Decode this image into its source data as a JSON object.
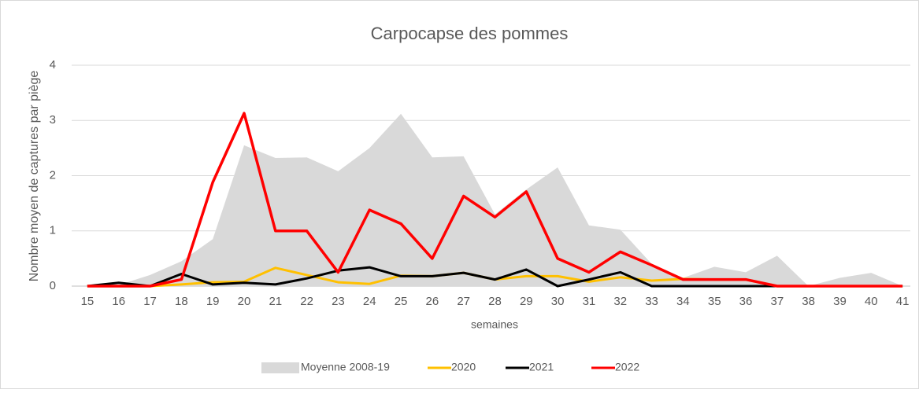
{
  "chart_data": {
    "type": "line",
    "title": "Carpocapse des pommes",
    "x_label": "semaines",
    "y_label": "Nombre  moyen de captures par piège",
    "categories": [
      "15",
      "16",
      "17",
      "18",
      "19",
      "20",
      "21",
      "22",
      "23",
      "24",
      "25",
      "26",
      "27",
      "28",
      "29",
      "30",
      "31",
      "32",
      "33",
      "34",
      "35",
      "36",
      "37",
      "38",
      "39",
      "40",
      "41"
    ],
    "series": [
      {
        "name": "Moyenne 2008-19",
        "type": "area",
        "color": "#d9d9d9",
        "values": [
          0,
          0.02,
          0.2,
          0.45,
          0.85,
          2.55,
          2.32,
          2.33,
          2.08,
          2.5,
          3.12,
          2.33,
          2.35,
          1.3,
          1.75,
          2.15,
          1.1,
          1.02,
          0.4,
          0.15,
          0.35,
          0.25,
          0.55,
          0,
          0.15,
          0.24,
          0
        ]
      },
      {
        "name": "2020",
        "type": "line",
        "color": "#ffc000",
        "values": [
          0,
          0,
          0,
          0.03,
          0.07,
          0.08,
          0.33,
          0.2,
          0.07,
          0.04,
          0.19,
          0.18,
          0.24,
          0.12,
          0.18,
          0.18,
          0.08,
          0.16,
          0.1,
          0.13,
          0.12,
          0.12,
          0,
          0,
          0,
          0,
          0
        ]
      },
      {
        "name": "2021",
        "type": "line",
        "color": "#000000",
        "values": [
          0,
          0.06,
          0,
          0.22,
          0.03,
          0.06,
          0.03,
          0.14,
          0.28,
          0.34,
          0.18,
          0.18,
          0.24,
          0.12,
          0.3,
          0,
          0.12,
          0.25,
          0,
          0,
          0,
          0,
          0,
          0,
          0,
          0,
          0
        ]
      },
      {
        "name": "2022",
        "type": "line",
        "color": "#ff0000",
        "values": [
          0,
          0,
          0,
          0.12,
          1.88,
          3.13,
          1.0,
          1.0,
          0.25,
          1.38,
          1.13,
          0.5,
          1.63,
          1.25,
          1.71,
          0.5,
          0.25,
          0.62,
          0.38,
          0.12,
          0.12,
          0.12,
          0,
          0,
          0,
          0,
          0
        ]
      }
    ],
    "ylim": [
      0,
      4
    ],
    "yticks": [
      0,
      1,
      2,
      3,
      4
    ],
    "grid": true,
    "legend": "bottom"
  }
}
